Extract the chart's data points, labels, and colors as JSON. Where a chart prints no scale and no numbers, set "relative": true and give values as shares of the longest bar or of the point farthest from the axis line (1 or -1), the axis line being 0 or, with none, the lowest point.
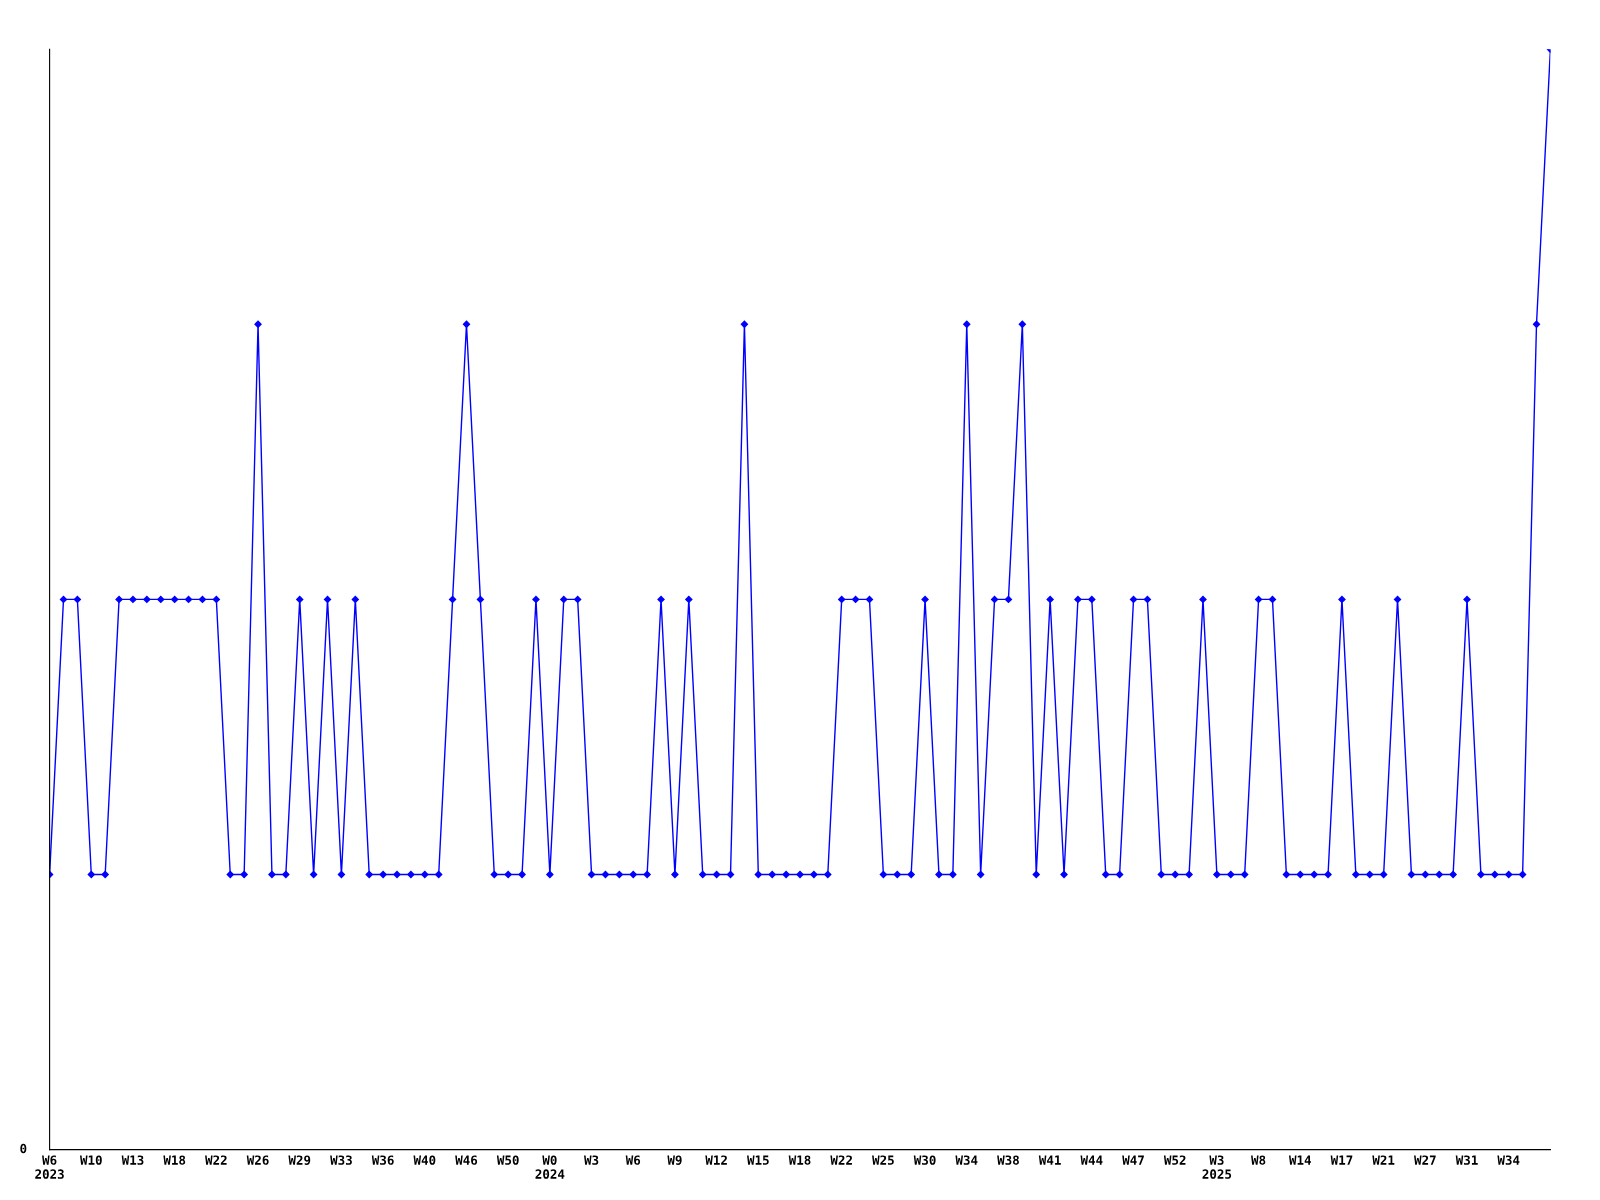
{
  "chart_data": {
    "type": "line",
    "relative": true,
    "marker": "diamond",
    "line_style": "solid",
    "grid": false,
    "categories": [
      "W6\n2023",
      null,
      null,
      "W10",
      null,
      null,
      "W13",
      null,
      null,
      "W18",
      null,
      null,
      "W22",
      null,
      null,
      "W26",
      null,
      null,
      "W29",
      null,
      null,
      "W33",
      null,
      null,
      "W36",
      null,
      null,
      "W40",
      null,
      null,
      "W46",
      null,
      null,
      "W50",
      null,
      null,
      "W0\n2024",
      null,
      null,
      "W3",
      null,
      null,
      "W6",
      null,
      null,
      "W9",
      null,
      null,
      "W12",
      null,
      null,
      "W15",
      null,
      null,
      "W18",
      null,
      null,
      "W22",
      null,
      null,
      "W25",
      null,
      null,
      "W30",
      null,
      null,
      "W34",
      null,
      null,
      "W38",
      null,
      null,
      "W41",
      null,
      null,
      "W44",
      null,
      null,
      "W47",
      null,
      null,
      "W52",
      null,
      null,
      "W3\n2025",
      null,
      null,
      "W8",
      null,
      null,
      "W14",
      null,
      null,
      "W17",
      null,
      null,
      "W21",
      null,
      null,
      "W27",
      null,
      null,
      "W31",
      null,
      null,
      "W34",
      null,
      null,
      null
    ],
    "series": [
      {
        "color": "#0000ff",
        "values": [
          0.25,
          0.5,
          0.5,
          0.25,
          0.25,
          0.5,
          0.5,
          0.5,
          0.5,
          0.5,
          0.5,
          0.5,
          0.5,
          0.25,
          0.25,
          0.75,
          0.25,
          0.25,
          0.5,
          0.25,
          0.5,
          0.25,
          0.5,
          0.25,
          0.25,
          0.25,
          0.25,
          0.25,
          0.25,
          0.5,
          0.75,
          0.5,
          0.25,
          0.25,
          0.25,
          0.5,
          0.25,
          0.5,
          0.5,
          0.25,
          0.25,
          0.25,
          0.25,
          0.25,
          0.5,
          0.25,
          0.5,
          0.25,
          0.25,
          0.25,
          0.75,
          0.25,
          0.25,
          0.25,
          0.25,
          0.25,
          0.25,
          0.5,
          0.5,
          0.5,
          0.25,
          0.25,
          0.25,
          0.5,
          0.25,
          0.25,
          0.75,
          0.25,
          0.5,
          0.5,
          0.75,
          0.25,
          0.5,
          0.25,
          0.5,
          0.5,
          0.25,
          0.25,
          0.5,
          0.5,
          0.25,
          0.25,
          0.25,
          0.5,
          0.25,
          0.25,
          0.25,
          0.5,
          0.5,
          0.25,
          0.25,
          0.25,
          0.25,
          0.5,
          0.25,
          0.25,
          0.25,
          0.5,
          0.25,
          0.25,
          0.25,
          0.25,
          0.5,
          0.25,
          0.25,
          0.25,
          0.25,
          0.75,
          1
        ]
      }
    ],
    "annotations": [
      "0"
    ]
  }
}
